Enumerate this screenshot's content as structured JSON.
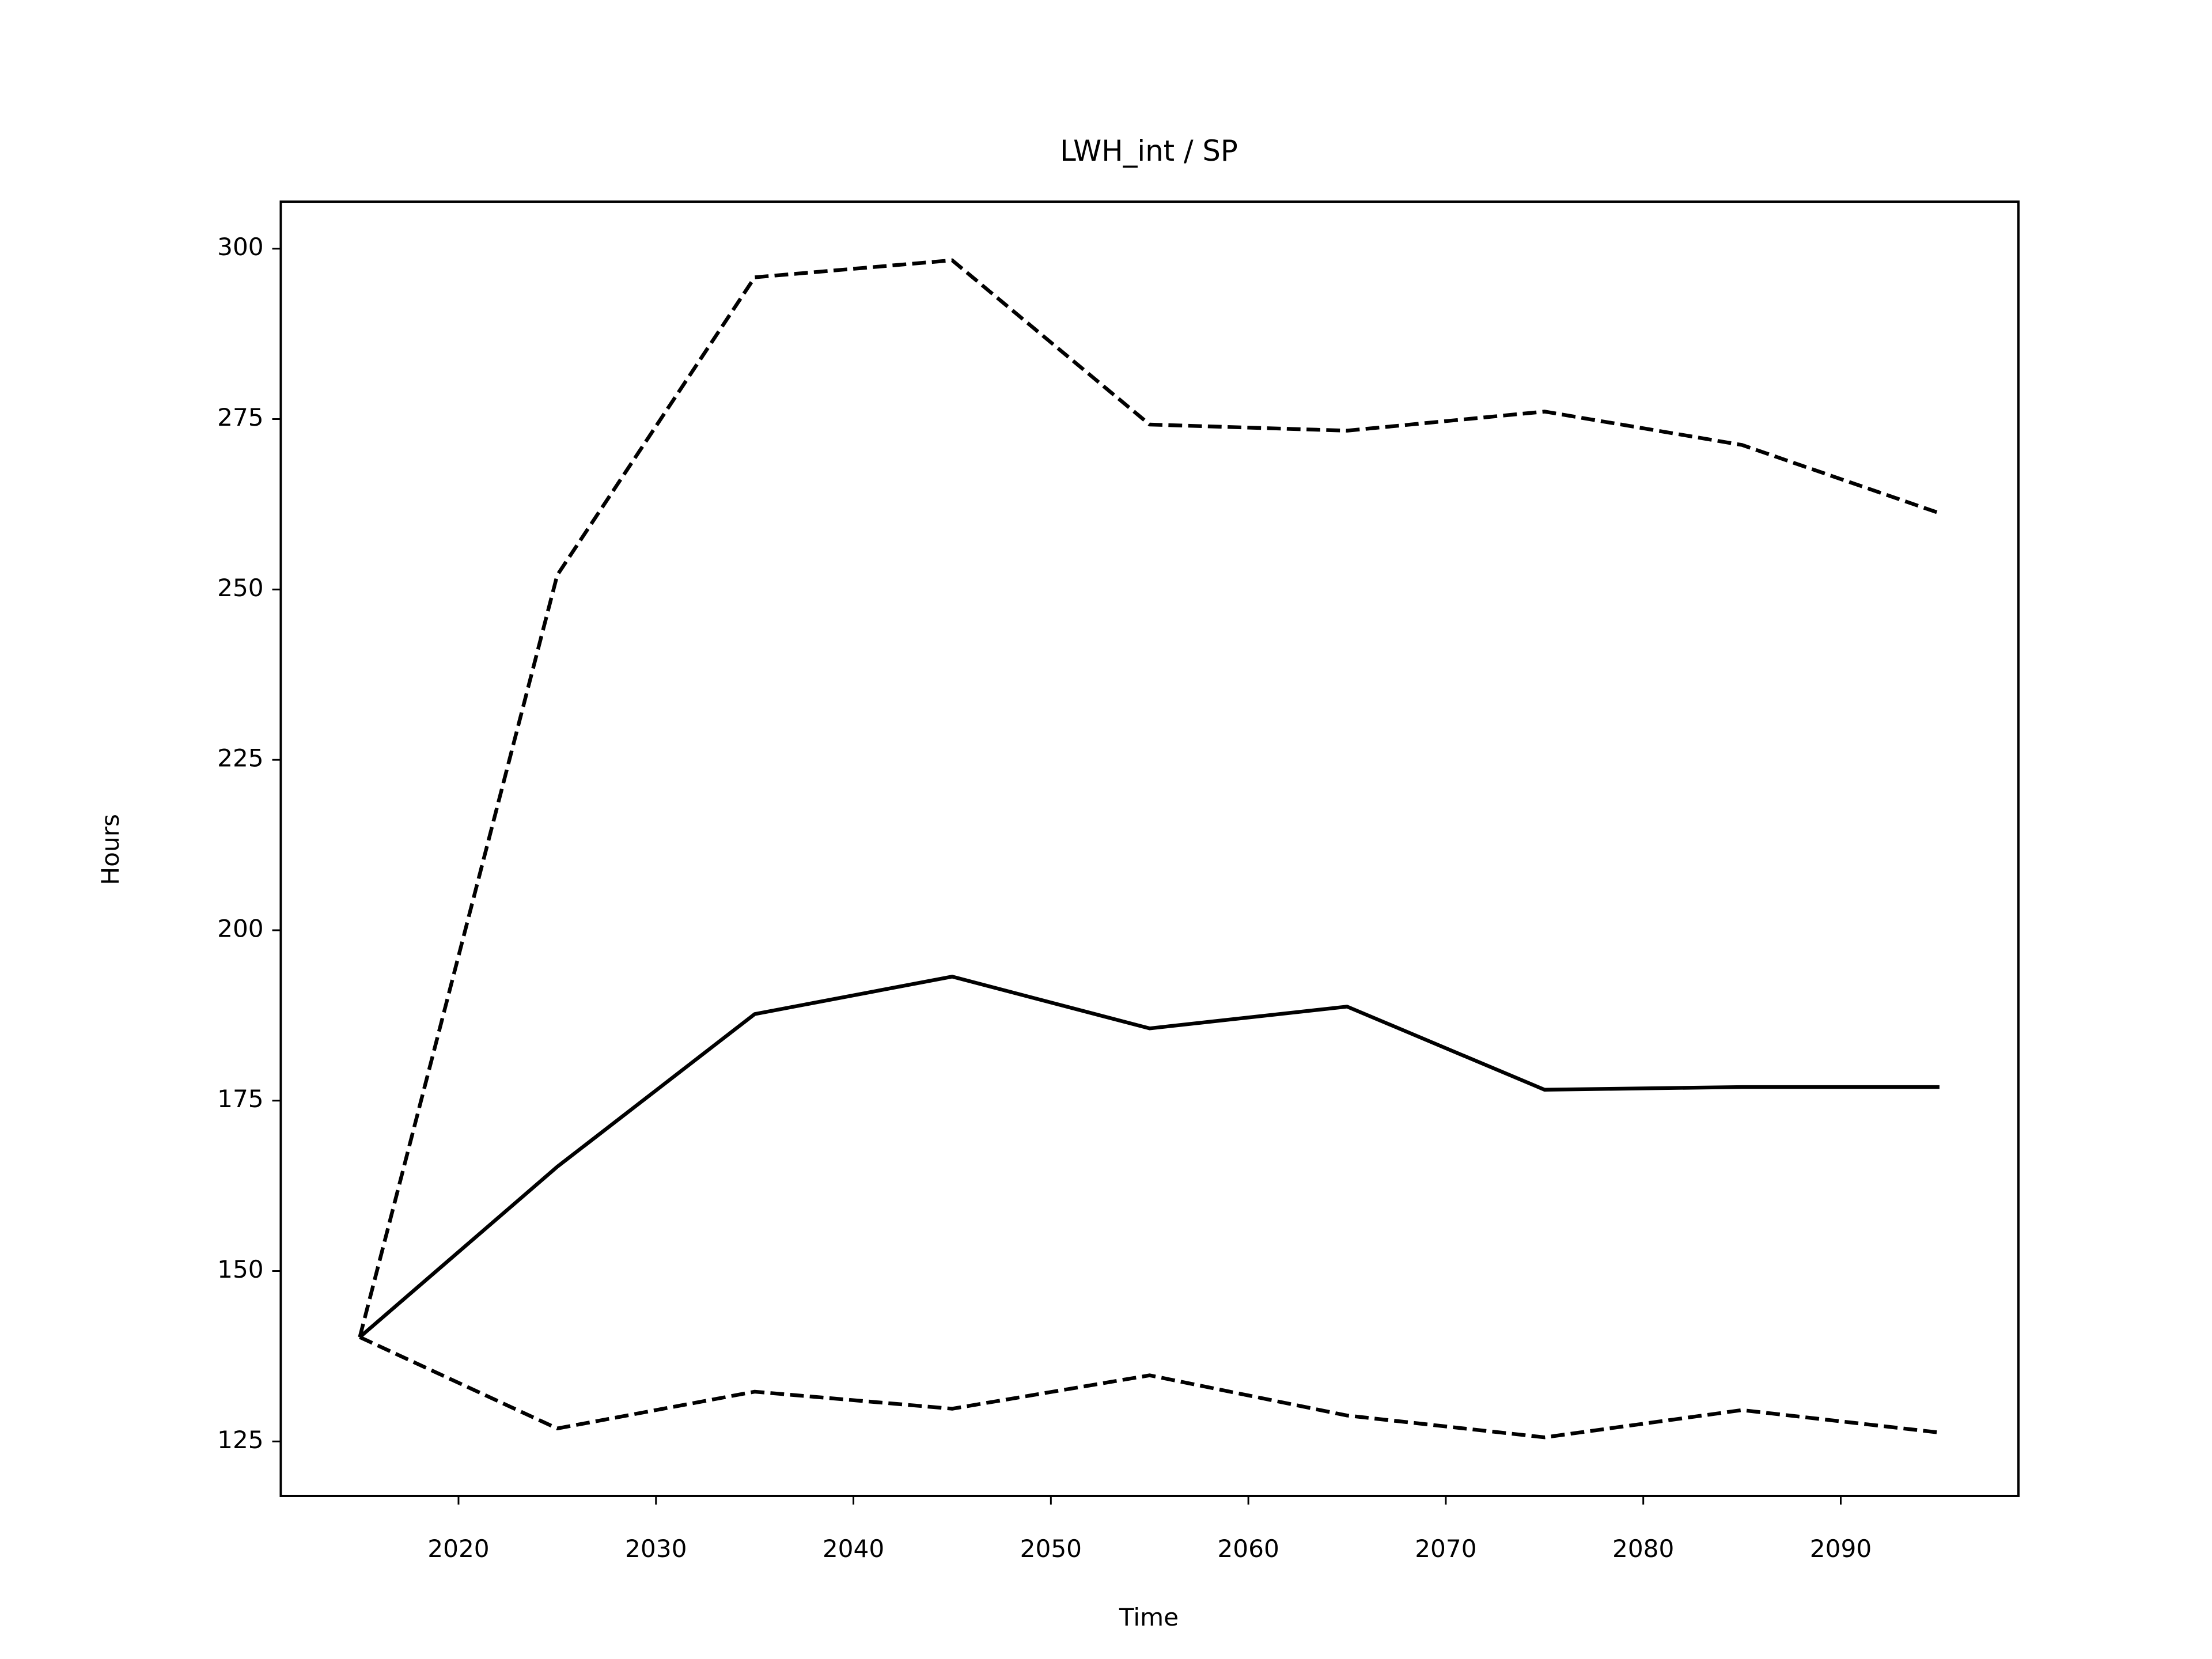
{
  "chart_data": {
    "type": "line",
    "title": "LWH_int / SP",
    "xlabel": "Time",
    "ylabel": "Hours",
    "x": [
      2015,
      2025,
      2035,
      2045,
      2055,
      2065,
      2075,
      2085,
      2095
    ],
    "series": [
      {
        "color": "#000000",
        "dashed": true,
        "values": [
          140.3,
          252.1,
          295.8,
          298.3,
          274.2,
          273.3,
          276.1,
          271.2,
          261.2
        ]
      },
      {
        "color": "#000000",
        "dashed": false,
        "values": [
          140.3,
          165.3,
          187.7,
          193.2,
          185.6,
          188.8,
          176.6,
          177.0,
          177.0
        ]
      },
      {
        "color": "#000000",
        "dashed": true,
        "values": [
          140.3,
          126.9,
          132.3,
          129.8,
          134.7,
          128.8,
          125.6,
          129.6,
          126.3
        ]
      }
    ],
    "xlim": [
      2011,
      2099
    ],
    "xticks": [
      2020,
      2030,
      2040,
      2050,
      2060,
      2070,
      2080,
      2090
    ],
    "ylim": [
      117,
      306.9
    ],
    "yticks": [
      125,
      150,
      175,
      200,
      225,
      250,
      275,
      300
    ],
    "grid": false
  }
}
